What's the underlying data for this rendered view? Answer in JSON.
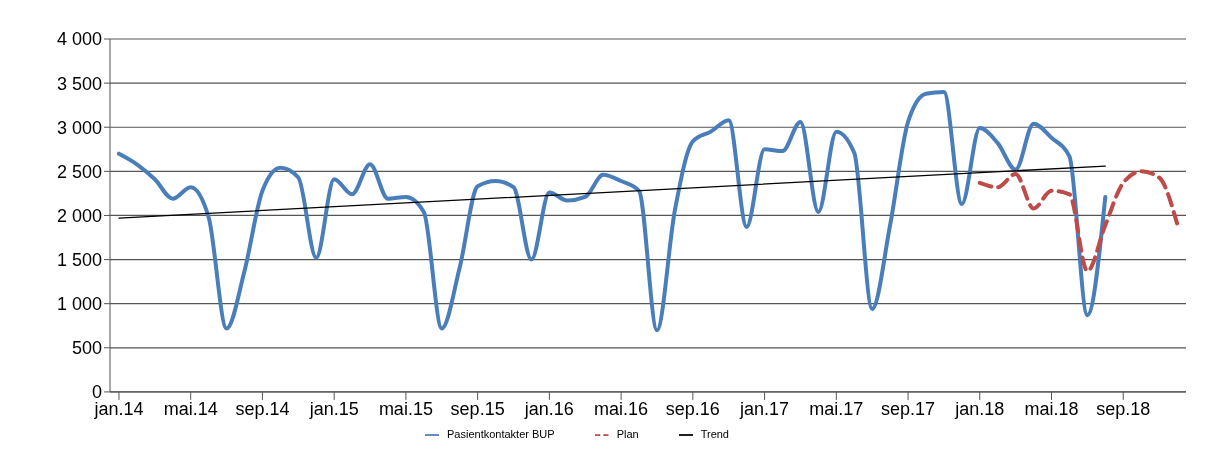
{
  "chart_data": {
    "type": "line",
    "x": [
      "2014-01",
      "2014-02",
      "2014-03",
      "2014-04",
      "2014-05",
      "2014-06",
      "2014-07",
      "2014-08",
      "2014-09",
      "2014-10",
      "2014-11",
      "2014-12",
      "2015-01",
      "2015-02",
      "2015-03",
      "2015-04",
      "2015-05",
      "2015-06",
      "2015-07",
      "2015-08",
      "2015-09",
      "2015-10",
      "2015-11",
      "2015-12",
      "2016-01",
      "2016-02",
      "2016-03",
      "2016-04",
      "2016-05",
      "2016-06",
      "2016-07",
      "2016-08",
      "2016-09",
      "2016-10",
      "2016-11",
      "2016-12",
      "2017-01",
      "2017-02",
      "2017-03",
      "2017-04",
      "2017-05",
      "2017-06",
      "2017-07",
      "2017-08",
      "2017-09",
      "2017-10",
      "2017-11",
      "2017-12",
      "2018-01",
      "2018-02",
      "2018-03",
      "2018-04",
      "2018-05",
      "2018-06",
      "2018-07",
      "2018-08",
      "2018-09",
      "2018-10",
      "2018-11",
      "2018-12"
    ],
    "series": [
      {
        "name": "Pasientkontakter BUP",
        "color": "#4a7ebb",
        "line_style": "solid",
        "values": [
          2700,
          2580,
          2410,
          2190,
          2320,
          1980,
          720,
          1370,
          2280,
          2540,
          2430,
          1520,
          2410,
          2240,
          2580,
          2190,
          2210,
          2040,
          720,
          1410,
          2330,
          2390,
          2320,
          1500,
          2260,
          2170,
          2210,
          2460,
          2390,
          2280,
          700,
          2060,
          2840,
          2950,
          3080,
          1870,
          2750,
          2730,
          3060,
          2040,
          2950,
          2710,
          940,
          1890,
          3060,
          3380,
          3400,
          2130,
          2990,
          2820,
          2520,
          3040,
          2880,
          2670,
          870,
          2210,
          null,
          null,
          null,
          null
        ]
      },
      {
        "name": "Plan",
        "color": "#be4b48",
        "line_style": "dashed",
        "values": [
          null,
          null,
          null,
          null,
          null,
          null,
          null,
          null,
          null,
          null,
          null,
          null,
          null,
          null,
          null,
          null,
          null,
          null,
          null,
          null,
          null,
          null,
          null,
          null,
          null,
          null,
          null,
          null,
          null,
          null,
          null,
          null,
          null,
          null,
          null,
          null,
          null,
          null,
          null,
          null,
          null,
          null,
          null,
          null,
          null,
          null,
          null,
          null,
          2370,
          2320,
          2470,
          2080,
          2280,
          2240,
          1370,
          1890,
          2370,
          2500,
          2430,
          1910
        ]
      },
      {
        "name": "Trend",
        "color": "#000000",
        "line_style": "solid",
        "x": [
          "2014-01",
          "2018-08"
        ],
        "values": [
          1970,
          2560
        ]
      }
    ],
    "xlim": [
      "2013-12-16",
      "2018-12-16"
    ],
    "xticks": [
      {
        "value": "2014-01",
        "label": "jan.14"
      },
      {
        "value": "2014-05",
        "label": "mai.14"
      },
      {
        "value": "2014-09",
        "label": "sep.14"
      },
      {
        "value": "2015-01",
        "label": "jan.15"
      },
      {
        "value": "2015-05",
        "label": "mai.15"
      },
      {
        "value": "2015-09",
        "label": "sep.15"
      },
      {
        "value": "2016-01",
        "label": "jan.16"
      },
      {
        "value": "2016-05",
        "label": "mai.16"
      },
      {
        "value": "2016-09",
        "label": "sep.16"
      },
      {
        "value": "2017-01",
        "label": "jan.17"
      },
      {
        "value": "2017-05",
        "label": "mai.17"
      },
      {
        "value": "2017-09",
        "label": "sep.17"
      },
      {
        "value": "2018-01",
        "label": "jan.18"
      },
      {
        "value": "2018-05",
        "label": "mai.18"
      },
      {
        "value": "2018-09",
        "label": "sep.18"
      }
    ],
    "ylim": [
      0,
      4000
    ],
    "yticks": [
      0,
      500,
      {
        "value": 1000,
        "label": "1 000"
      },
      {
        "value": 1500,
        "label": "1 500"
      },
      {
        "value": 2000,
        "label": "2 000"
      },
      {
        "value": 2500,
        "label": "2 500"
      },
      {
        "value": 3000,
        "label": "3 000"
      },
      {
        "value": 3500,
        "label": "3 500"
      },
      {
        "value": 4000,
        "label": "4 000"
      }
    ],
    "grid": "y",
    "legend": "bottom",
    "marker": "none"
  }
}
